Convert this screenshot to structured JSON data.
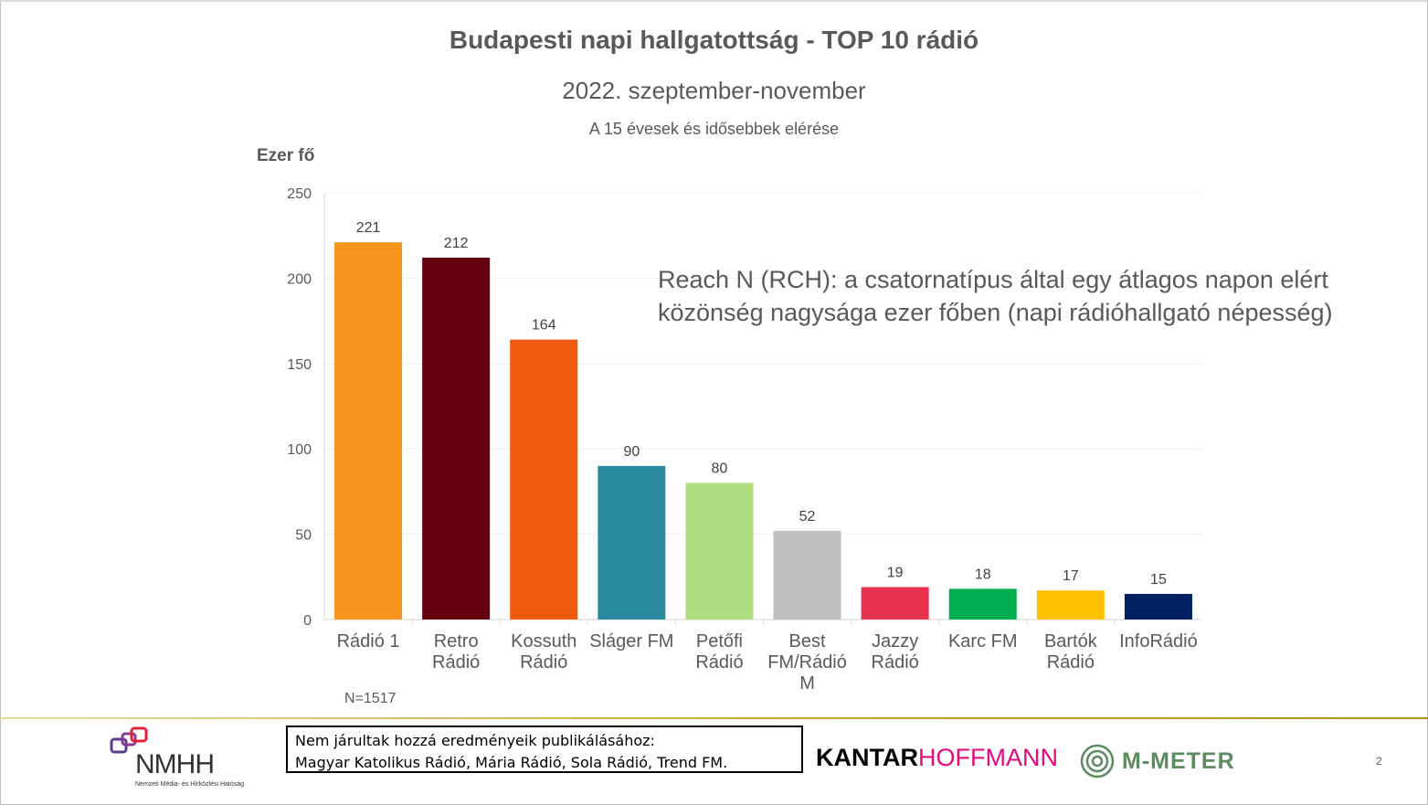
{
  "header": {
    "title": "Budapesti napi hallgatottság - TOP 10 rádió",
    "subtitle": "2022. szeptember-november",
    "subtitle2": "A 15 évesek és idősebbek elérése"
  },
  "definition_note": "Reach N (RCH): a csatornatípus által egy átlagos napon elért közönség nagysága ezer főben (napi rádióhallgató népesség)",
  "sample_size": "N=1517",
  "footer": {
    "note_line1": "Nem járultak hozzá eredményeik publikálásához:",
    "note_line2": "Magyar Katolikus Rádió, Mária Rádió, Sola Rádió, Trend FM.",
    "kantar_part1": "KANTAR",
    "kantar_part2": "HOFFMANN",
    "mmeter_label": "M-METER",
    "nmhh_logo": "NMHH",
    "nmhh_full": "Nemzeti Média- és Hírközlési Hatóság",
    "page_number": "2"
  },
  "chart_data": {
    "type": "bar",
    "ylabel": "Ezer fő",
    "ylim": [
      0,
      250
    ],
    "yticks": [
      0,
      50,
      100,
      150,
      200,
      250
    ],
    "grid": true,
    "categories": [
      [
        "Rádió 1"
      ],
      [
        "Retro",
        "Rádió"
      ],
      [
        "Kossuth",
        "Rádió"
      ],
      [
        "Sláger FM"
      ],
      [
        "Petőfi",
        "Rádió"
      ],
      [
        "Best",
        "FM/Rádió",
        "M"
      ],
      [
        "Jazzy",
        "Rádió"
      ],
      [
        "Karc FM"
      ],
      [
        "Bartók",
        "Rádió"
      ],
      [
        "InfoRádió"
      ]
    ],
    "values": [
      221,
      212,
      164,
      90,
      80,
      52,
      19,
      18,
      17,
      15
    ],
    "colors": [
      "#f7941d",
      "#650010",
      "#f05a0e",
      "#2a8aa0",
      "#aede7e",
      "#bfbfbf",
      "#e8304f",
      "#00b050",
      "#ffc000",
      "#002060"
    ]
  }
}
